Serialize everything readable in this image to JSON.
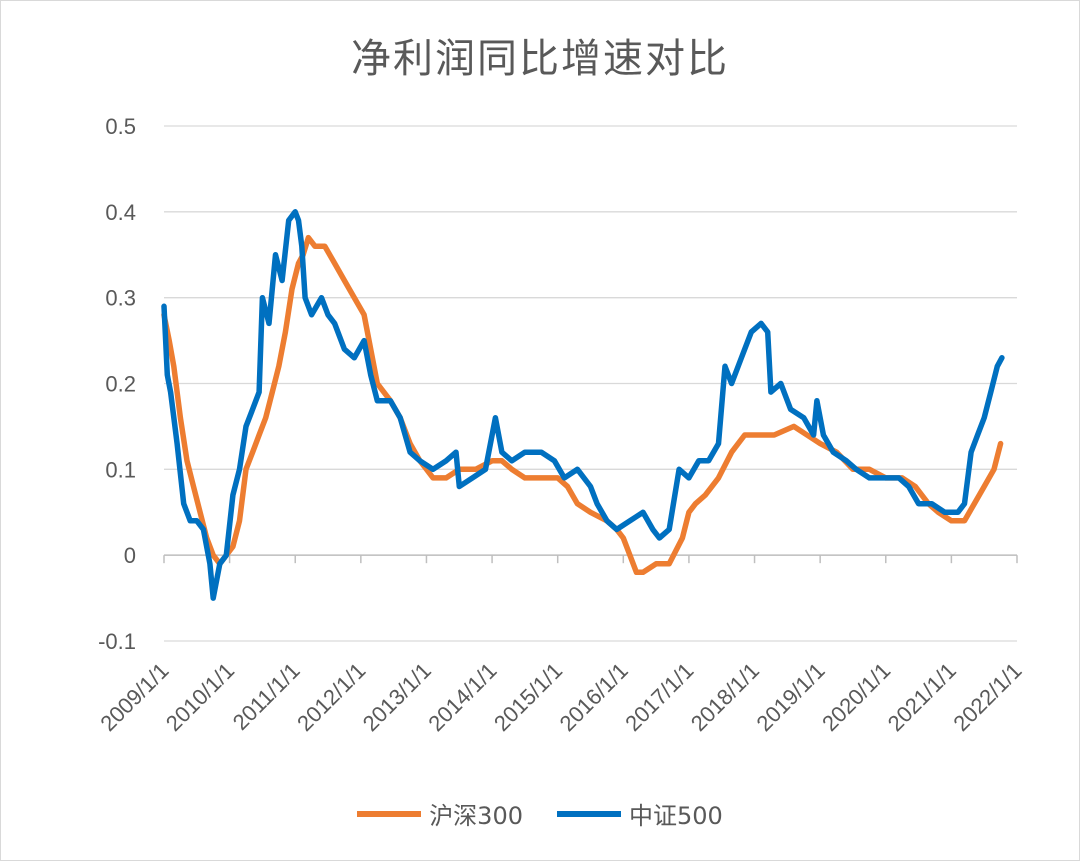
{
  "chart_data": {
    "type": "line",
    "title": "净利润同比增速对比",
    "ylim": [
      -0.1,
      0.5
    ],
    "y_ticks": [
      "0.5",
      "0.4",
      "0.3",
      "0.2",
      "0.1",
      "0",
      "-0.1"
    ],
    "y_tick_values": [
      0.5,
      0.4,
      0.3,
      0.2,
      0.1,
      0,
      -0.1
    ],
    "x_ticks": [
      "2009/1/1",
      "2010/1/1",
      "2011/1/1",
      "2012/1/1",
      "2013/1/1",
      "2014/1/1",
      "2015/1/1",
      "2016/1/1",
      "2017/1/1",
      "2018/1/1",
      "2019/1/1",
      "2020/1/1",
      "2021/1/1",
      "2022/1/1"
    ],
    "xlim": [
      2009.0,
      2022.0
    ],
    "grid": true,
    "legend_position": "bottom",
    "series": [
      {
        "name": "沪深300",
        "color": "#ED7D31",
        "points": [
          [
            2009.0,
            0.28
          ],
          [
            2009.08,
            0.25
          ],
          [
            2009.15,
            0.22
          ],
          [
            2009.25,
            0.16
          ],
          [
            2009.35,
            0.11
          ],
          [
            2009.45,
            0.08
          ],
          [
            2009.55,
            0.05
          ],
          [
            2009.65,
            0.02
          ],
          [
            2009.75,
            0.0
          ],
          [
            2009.85,
            -0.01
          ],
          [
            2009.95,
            0.0
          ],
          [
            2010.05,
            0.01
          ],
          [
            2010.15,
            0.04
          ],
          [
            2010.25,
            0.1
          ],
          [
            2010.35,
            0.12
          ],
          [
            2010.45,
            0.14
          ],
          [
            2010.55,
            0.16
          ],
          [
            2010.65,
            0.19
          ],
          [
            2010.75,
            0.22
          ],
          [
            2010.85,
            0.26
          ],
          [
            2010.95,
            0.31
          ],
          [
            2011.05,
            0.34
          ],
          [
            2011.12,
            0.35
          ],
          [
            2011.2,
            0.37
          ],
          [
            2011.3,
            0.36
          ],
          [
            2011.45,
            0.36
          ],
          [
            2011.6,
            0.34
          ],
          [
            2011.75,
            0.32
          ],
          [
            2011.9,
            0.3
          ],
          [
            2012.05,
            0.28
          ],
          [
            2012.15,
            0.24
          ],
          [
            2012.25,
            0.2
          ],
          [
            2012.45,
            0.18
          ],
          [
            2012.6,
            0.16
          ],
          [
            2012.75,
            0.13
          ],
          [
            2012.9,
            0.11
          ],
          [
            2013.0,
            0.1
          ],
          [
            2013.1,
            0.09
          ],
          [
            2013.3,
            0.09
          ],
          [
            2013.5,
            0.1
          ],
          [
            2013.75,
            0.1
          ],
          [
            2014.0,
            0.11
          ],
          [
            2014.15,
            0.11
          ],
          [
            2014.3,
            0.1
          ],
          [
            2014.5,
            0.09
          ],
          [
            2014.75,
            0.09
          ],
          [
            2015.0,
            0.09
          ],
          [
            2015.15,
            0.08
          ],
          [
            2015.3,
            0.06
          ],
          [
            2015.5,
            0.05
          ],
          [
            2015.75,
            0.04
          ],
          [
            2015.9,
            0.03
          ],
          [
            2016.0,
            0.02
          ],
          [
            2016.1,
            0.0
          ],
          [
            2016.2,
            -0.02
          ],
          [
            2016.3,
            -0.02
          ],
          [
            2016.5,
            -0.01
          ],
          [
            2016.7,
            -0.01
          ],
          [
            2016.9,
            0.02
          ],
          [
            2017.0,
            0.05
          ],
          [
            2017.1,
            0.06
          ],
          [
            2017.25,
            0.07
          ],
          [
            2017.45,
            0.09
          ],
          [
            2017.65,
            0.12
          ],
          [
            2017.85,
            0.14
          ],
          [
            2018.0,
            0.14
          ],
          [
            2018.3,
            0.14
          ],
          [
            2018.6,
            0.15
          ],
          [
            2018.8,
            0.14
          ],
          [
            2019.0,
            0.13
          ],
          [
            2019.25,
            0.12
          ],
          [
            2019.5,
            0.1
          ],
          [
            2019.75,
            0.1
          ],
          [
            2020.0,
            0.09
          ],
          [
            2020.25,
            0.09
          ],
          [
            2020.45,
            0.08
          ],
          [
            2020.65,
            0.06
          ],
          [
            2020.8,
            0.05
          ],
          [
            2021.0,
            0.04
          ],
          [
            2021.2,
            0.04
          ],
          [
            2021.35,
            0.06
          ],
          [
            2021.5,
            0.08
          ],
          [
            2021.65,
            0.1
          ],
          [
            2021.75,
            0.13
          ]
        ]
      },
      {
        "name": "中证500",
        "color": "#0070C0",
        "points": [
          [
            2009.0,
            0.29
          ],
          [
            2009.05,
            0.21
          ],
          [
            2009.1,
            0.19
          ],
          [
            2009.2,
            0.13
          ],
          [
            2009.3,
            0.06
          ],
          [
            2009.4,
            0.04
          ],
          [
            2009.5,
            0.04
          ],
          [
            2009.6,
            0.03
          ],
          [
            2009.7,
            -0.01
          ],
          [
            2009.75,
            -0.05
          ],
          [
            2009.85,
            -0.01
          ],
          [
            2009.95,
            0.0
          ],
          [
            2010.05,
            0.07
          ],
          [
            2010.15,
            0.1
          ],
          [
            2010.25,
            0.15
          ],
          [
            2010.35,
            0.17
          ],
          [
            2010.45,
            0.19
          ],
          [
            2010.5,
            0.3
          ],
          [
            2010.6,
            0.27
          ],
          [
            2010.7,
            0.35
          ],
          [
            2010.8,
            0.32
          ],
          [
            2010.9,
            0.39
          ],
          [
            2011.0,
            0.4
          ],
          [
            2011.05,
            0.39
          ],
          [
            2011.1,
            0.36
          ],
          [
            2011.15,
            0.3
          ],
          [
            2011.25,
            0.28
          ],
          [
            2011.4,
            0.3
          ],
          [
            2011.5,
            0.28
          ],
          [
            2011.6,
            0.27
          ],
          [
            2011.75,
            0.24
          ],
          [
            2011.9,
            0.23
          ],
          [
            2012.05,
            0.25
          ],
          [
            2012.15,
            0.21
          ],
          [
            2012.25,
            0.18
          ],
          [
            2012.45,
            0.18
          ],
          [
            2012.6,
            0.16
          ],
          [
            2012.75,
            0.12
          ],
          [
            2012.9,
            0.11
          ],
          [
            2013.1,
            0.1
          ],
          [
            2013.3,
            0.11
          ],
          [
            2013.45,
            0.12
          ],
          [
            2013.5,
            0.08
          ],
          [
            2013.7,
            0.09
          ],
          [
            2013.9,
            0.1
          ],
          [
            2014.05,
            0.16
          ],
          [
            2014.15,
            0.12
          ],
          [
            2014.3,
            0.11
          ],
          [
            2014.5,
            0.12
          ],
          [
            2014.75,
            0.12
          ],
          [
            2014.95,
            0.11
          ],
          [
            2015.1,
            0.09
          ],
          [
            2015.3,
            0.1
          ],
          [
            2015.5,
            0.08
          ],
          [
            2015.6,
            0.06
          ],
          [
            2015.75,
            0.04
          ],
          [
            2015.9,
            0.03
          ],
          [
            2016.1,
            0.04
          ],
          [
            2016.3,
            0.05
          ],
          [
            2016.45,
            0.03
          ],
          [
            2016.55,
            0.02
          ],
          [
            2016.7,
            0.03
          ],
          [
            2016.85,
            0.1
          ],
          [
            2017.0,
            0.09
          ],
          [
            2017.15,
            0.11
          ],
          [
            2017.3,
            0.11
          ],
          [
            2017.45,
            0.13
          ],
          [
            2017.55,
            0.22
          ],
          [
            2017.65,
            0.2
          ],
          [
            2017.8,
            0.23
          ],
          [
            2017.95,
            0.26
          ],
          [
            2018.1,
            0.27
          ],
          [
            2018.2,
            0.26
          ],
          [
            2018.25,
            0.19
          ],
          [
            2018.4,
            0.2
          ],
          [
            2018.55,
            0.17
          ],
          [
            2018.75,
            0.16
          ],
          [
            2018.9,
            0.14
          ],
          [
            2018.95,
            0.18
          ],
          [
            2019.05,
            0.14
          ],
          [
            2019.2,
            0.12
          ],
          [
            2019.4,
            0.11
          ],
          [
            2019.55,
            0.1
          ],
          [
            2019.75,
            0.09
          ],
          [
            2019.95,
            0.09
          ],
          [
            2020.2,
            0.09
          ],
          [
            2020.35,
            0.08
          ],
          [
            2020.5,
            0.06
          ],
          [
            2020.7,
            0.06
          ],
          [
            2020.9,
            0.05
          ],
          [
            2021.0,
            0.05
          ],
          [
            2021.1,
            0.05
          ],
          [
            2021.2,
            0.06
          ],
          [
            2021.3,
            0.12
          ],
          [
            2021.4,
            0.14
          ],
          [
            2021.5,
            0.16
          ],
          [
            2021.6,
            0.19
          ],
          [
            2021.7,
            0.22
          ],
          [
            2021.77,
            0.23
          ]
        ]
      }
    ]
  }
}
